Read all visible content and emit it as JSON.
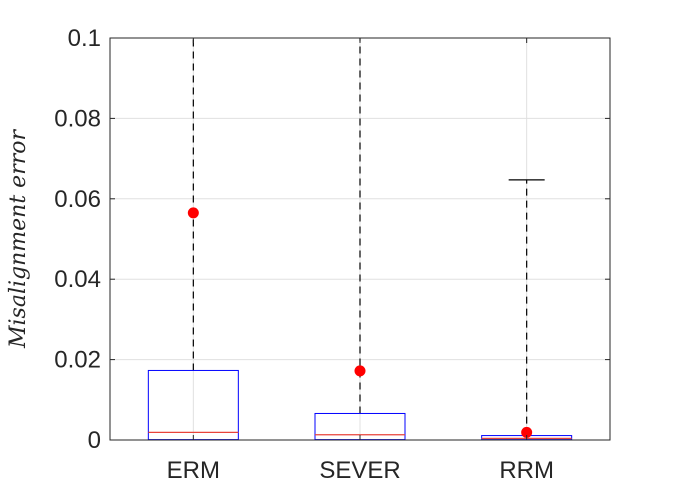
{
  "chart_data": {
    "type": "box",
    "title": "",
    "xlabel": "",
    "ylabel": "Misalignment error",
    "ylim": [
      0,
      0.1
    ],
    "yticks": [
      {
        "value": 0,
        "label": "0"
      },
      {
        "value": 0.02,
        "label": "0.02"
      },
      {
        "value": 0.04,
        "label": "0.04"
      },
      {
        "value": 0.06,
        "label": "0.06"
      },
      {
        "value": 0.08,
        "label": "0.08"
      },
      {
        "value": 0.1,
        "label": "0.1"
      }
    ],
    "grid": true,
    "categories": [
      "ERM",
      "SEVER",
      "RRM"
    ],
    "boxes": [
      {
        "name": "ERM",
        "whisker_low": 0,
        "q1": 0.0001,
        "median": 0.0019,
        "q3": 0.0173,
        "whisker_high": 0.1,
        "mean": 0.0565
      },
      {
        "name": "SEVER",
        "whisker_low": 0,
        "q1": 0.0001,
        "median": 0.0013,
        "q3": 0.0066,
        "whisker_high": 0.1,
        "mean": 0.0172
      },
      {
        "name": "RRM",
        "whisker_low": 0,
        "q1": 0.0001,
        "median": 0.0004,
        "q3": 0.0011,
        "whisker_high": 0.0647,
        "mean": 0.0019
      }
    ],
    "colors": {
      "box": "#0000ff",
      "median": "#e8433a",
      "whisker": "#000000",
      "mean_marker": "#ff0000",
      "grid": "#e0e0e0",
      "axis": "#262626"
    }
  }
}
